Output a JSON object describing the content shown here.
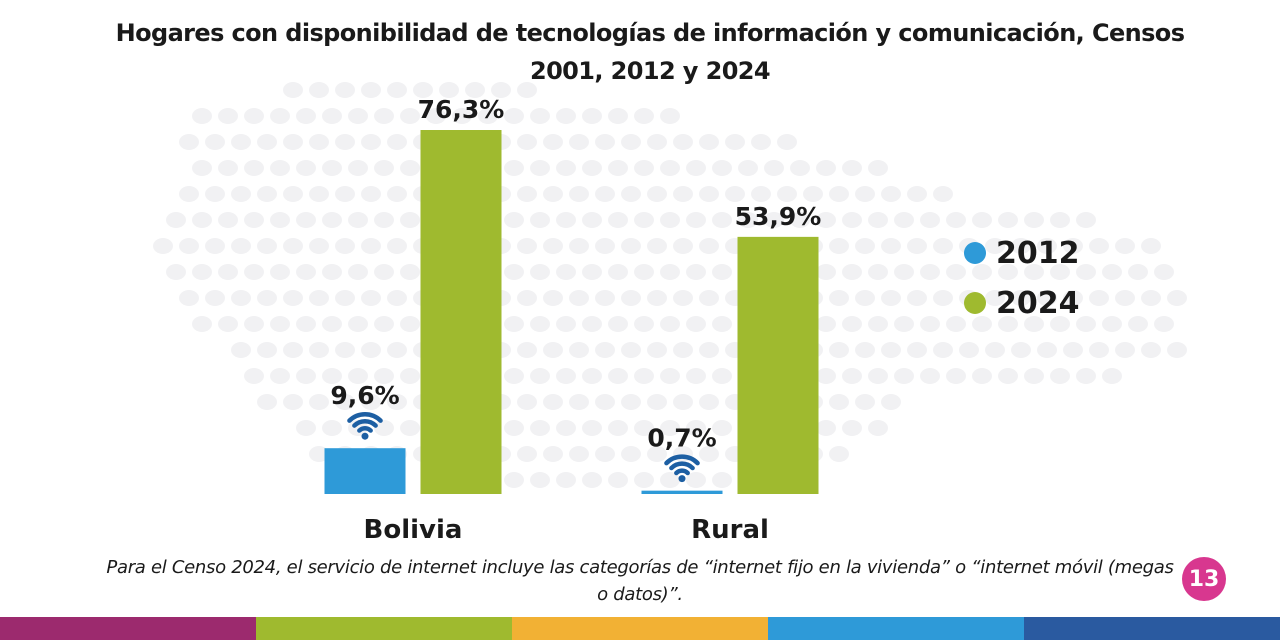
{
  "title": "Hogares con disponibilidad de tecnologías de información y comunicación, Censos 2001, 2012 y 2024",
  "chart_data": {
    "type": "bar",
    "categories": [
      "Bolivia",
      "Rural"
    ],
    "series": [
      {
        "name": "2012",
        "color": "#2e9ad8",
        "values": [
          9.6,
          0.7
        ],
        "labels": [
          "9,6%",
          "0,7%"
        ]
      },
      {
        "name": "2024",
        "color": "#9fba2f",
        "values": [
          76.3,
          53.9
        ],
        "labels": [
          "76,3%",
          "53,9%"
        ]
      }
    ],
    "ylim": [
      0,
      76.3
    ],
    "grid": false,
    "legend_position": "right",
    "annotation_icon": "wifi-icon"
  },
  "note": "Para el Censo 2024, el servicio de internet incluye las categorías de “internet fijo en la vivienda” o “internet móvil (megas o datos)”.",
  "page_number": "13",
  "footer_colors": [
    "#9c2a6e",
    "#9fba2f",
    "#f2b134",
    "#2e9ad8",
    "#2a5aa0"
  ],
  "wifi_icon_color": "#1d5fa3"
}
